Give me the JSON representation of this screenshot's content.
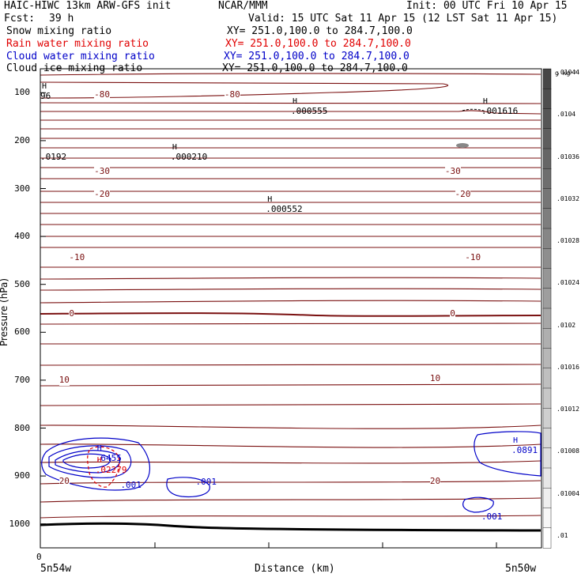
{
  "header": {
    "model": "HAIC-HIWC 13km ARW-GFS init",
    "org": "NCAR/MMM",
    "init": "Init: 00 UTC Fri 10 Apr 15",
    "fcst_label": "Fcst:",
    "fcst_value": "39 h",
    "valid": "Valid: 15 UTC Sat 11 Apr 15 (12 LST Sat 11 Apr 15)"
  },
  "fields": [
    {
      "name": "Snow mixing ratio",
      "xy": "XY= 251.0,100.0 to 284.7,100.0",
      "color": "#000000"
    },
    {
      "name": "Rain water mixing ratio",
      "xy": "XY= 251.0,100.0 to 284.7,100.0",
      "color": "#e00000"
    },
    {
      "name": "Cloud water mixing ratio",
      "xy": "XY= 251.0,100.0 to 284.7,100.0",
      "color": "#0000c8"
    },
    {
      "name": "Cloud ice mixing ratio",
      "xy": "XY= 251.0,100.0 to 284.7,100.0",
      "color": "#000000"
    }
  ],
  "colors": {
    "temperature": "#7a1010",
    "cloud_water": "#0000c8",
    "rain": "#e00000",
    "ground": "#000000"
  },
  "chart_data": {
    "type": "cross-section contour",
    "xlabel": "Distance (km)",
    "ylabel": "Pressure (hPa)",
    "x_tick_labels": [
      "0"
    ],
    "x_end_labels": [
      "5n54w",
      "5n50w"
    ],
    "y_ticks": [
      100,
      200,
      300,
      400,
      500,
      600,
      700,
      800,
      900,
      1000
    ],
    "ylim": [
      50,
      1050
    ],
    "temperature_labels": [
      {
        "text": "-80",
        "p": 105,
        "pos": 0.12
      },
      {
        "text": "-80",
        "p": 105,
        "pos": 0.38
      },
      {
        "text": "-30",
        "p": 265,
        "pos": 0.12
      },
      {
        "text": "-30",
        "p": 265,
        "pos": 0.82
      },
      {
        "text": "-20",
        "p": 313,
        "pos": 0.12
      },
      {
        "text": "-20",
        "p": 313,
        "pos": 0.84
      },
      {
        "text": "-10",
        "p": 445,
        "pos": 0.07
      },
      {
        "text": "-10",
        "p": 445,
        "pos": 0.86
      },
      {
        "text": "0",
        "p": 562,
        "pos": 0.07
      },
      {
        "text": "0",
        "p": 562,
        "pos": 0.83
      },
      {
        "text": "10",
        "p": 700,
        "pos": 0.05
      },
      {
        "text": "10",
        "p": 697,
        "pos": 0.79
      },
      {
        "text": "20",
        "p": 912,
        "pos": 0.05
      },
      {
        "text": "20",
        "p": 912,
        "pos": 0.79
      }
    ],
    "maxima": [
      {
        "mark": "H",
        "value": "96",
        "p": 100,
        "pos": 0.0
      },
      {
        "mark": "H",
        "value": ".000555",
        "p": 131,
        "pos": 0.5
      },
      {
        "mark": "H",
        "value": ".001616",
        "p": 131,
        "pos": 0.88
      },
      {
        "mark": "",
        "value": ".0192",
        "p": 226,
        "pos": 0.0
      },
      {
        "mark": "H",
        "value": ".000210",
        "p": 226,
        "pos": 0.26
      },
      {
        "mark": "H",
        "value": ".000552",
        "p": 335,
        "pos": 0.45
      },
      {
        "mark": "H",
        "value": ".6455",
        "p": 856,
        "pos": 0.11
      },
      {
        "mark": "H",
        "value": ".02279",
        "p": 880,
        "pos": 0.11
      },
      {
        "mark": "H",
        "value": ".0891",
        "p": 838,
        "pos": 0.94
      },
      {
        "mark": "",
        "value": ".001",
        "p": 912,
        "pos": 0.16
      },
      {
        "mark": "",
        "value": ".001",
        "p": 905,
        "pos": 0.31
      },
      {
        "mark": "",
        "value": ".001",
        "p": 978,
        "pos": 0.88
      }
    ],
    "colorbar": {
      "unit": "g kg⁻¹",
      "labels": [
        ".01",
        ".01004",
        ".01008",
        ".01012",
        ".01016",
        ".0102",
        ".01024",
        ".01028",
        ".01032",
        ".01036",
        ".0104",
        ".01044"
      ]
    }
  }
}
